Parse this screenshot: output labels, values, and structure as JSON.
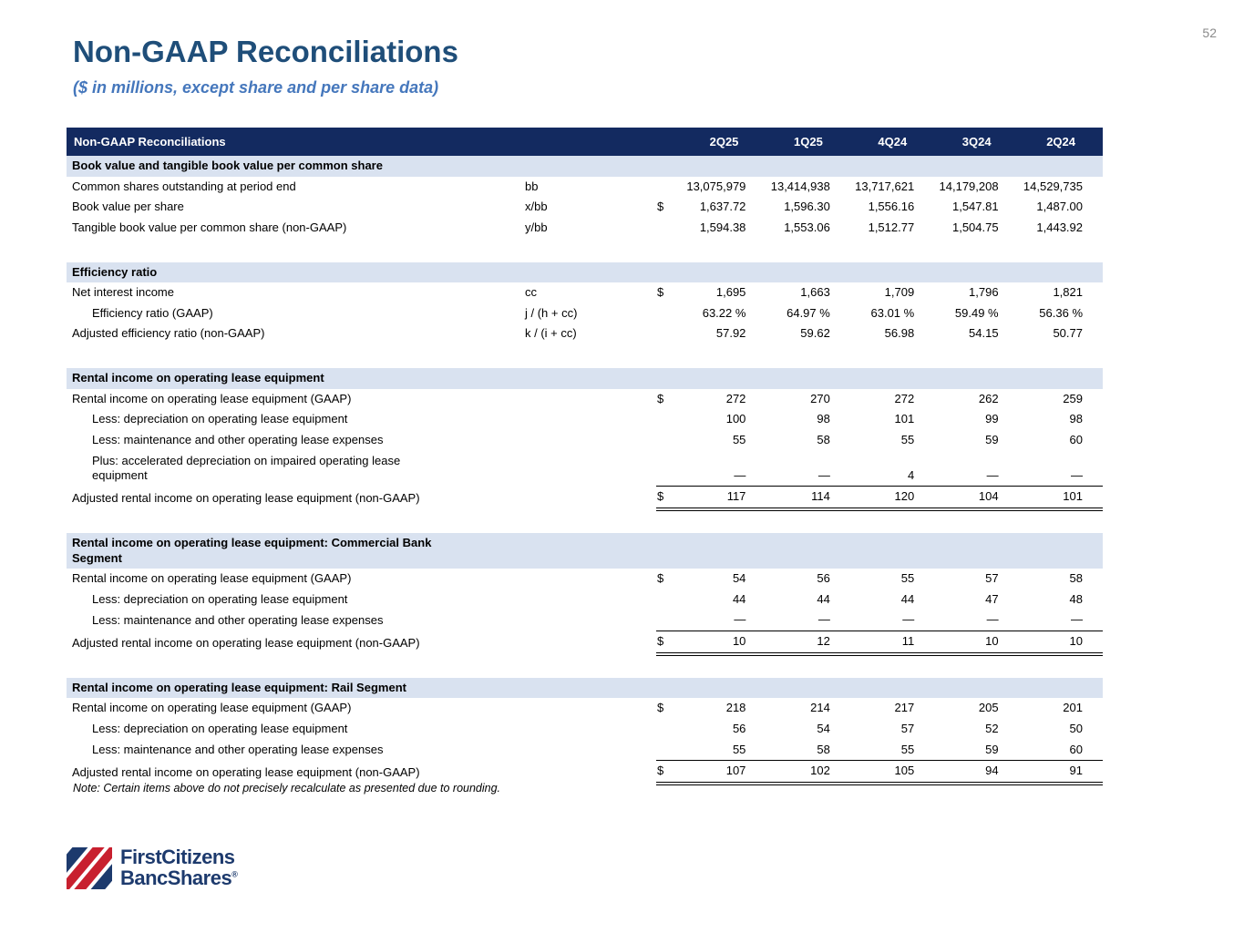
{
  "page": {
    "number": "52",
    "title": "Non-GAAP Reconciliations",
    "subtitle": "($ in millions, except share and per share data)",
    "note": "Note: Certain items above do not precisely recalculate as presented due to rounding."
  },
  "colors": {
    "header_bg": "#132a60",
    "section_bg": "#d9e2f0",
    "title_blue": "#1f4e79",
    "subtitle_blue": "#4577bc",
    "logo_blue": "#1d3a6d",
    "logo_red": "#c8202f"
  },
  "table": {
    "title": "Non-GAAP Reconciliations",
    "period_columns": [
      "2Q25",
      "1Q25",
      "4Q24",
      "3Q24",
      "2Q24"
    ],
    "sections": [
      {
        "title": "Book value and tangible book value per common share",
        "rows": [
          {
            "label": "Common shares outstanding at period end",
            "formula": "bb",
            "dollar": "",
            "indent": false,
            "total": false,
            "values": [
              "13,075,979",
              "13,414,938",
              "13,717,621",
              "14,179,208",
              "14,529,735"
            ]
          },
          {
            "label": "Book value per share",
            "formula": "x/bb",
            "dollar": "$",
            "indent": false,
            "total": false,
            "values": [
              "1,637.72",
              "1,596.30",
              "1,556.16",
              "1,547.81",
              "1,487.00"
            ]
          },
          {
            "label": "Tangible book value per common share (non-GAAP)",
            "formula": "y/bb",
            "dollar": "",
            "indent": false,
            "total": false,
            "values": [
              "1,594.38",
              "1,553.06",
              "1,512.77",
              "1,504.75",
              "1,443.92"
            ]
          }
        ]
      },
      {
        "title": "Efficiency ratio",
        "rows": [
          {
            "label": "Net interest income",
            "formula": "cc",
            "dollar": "$",
            "indent": false,
            "total": false,
            "values": [
              "1,695",
              "1,663",
              "1,709",
              "1,796",
              "1,821"
            ]
          },
          {
            "label": "Efficiency ratio (GAAP)",
            "formula": "j / (h + cc)",
            "dollar": "",
            "indent": true,
            "total": false,
            "values": [
              "63.22 %",
              "64.97 %",
              "63.01 %",
              "59.49 %",
              "56.36 %"
            ]
          },
          {
            "label": "Adjusted efficiency ratio (non-GAAP)",
            "formula": "k / (i + cc)",
            "dollar": "",
            "indent": false,
            "total": false,
            "values": [
              "57.92",
              "59.62",
              "56.98",
              "54.15",
              "50.77"
            ]
          }
        ]
      },
      {
        "title": "Rental income on operating lease equipment",
        "rows": [
          {
            "label": "Rental income on operating lease equipment (GAAP)",
            "formula": "",
            "dollar": "$",
            "indent": false,
            "total": false,
            "values": [
              "272",
              "270",
              "272",
              "262",
              "259"
            ]
          },
          {
            "label": "Less: depreciation on operating lease equipment",
            "formula": "",
            "dollar": "",
            "indent": true,
            "total": false,
            "values": [
              "100",
              "98",
              "101",
              "99",
              "98"
            ]
          },
          {
            "label": "Less: maintenance and other operating lease expenses",
            "formula": "",
            "dollar": "",
            "indent": true,
            "total": false,
            "values": [
              "55",
              "58",
              "55",
              "59",
              "60"
            ]
          },
          {
            "label": "Plus: accelerated depreciation on impaired operating lease\nequipment",
            "formula": "",
            "dollar": "",
            "indent": true,
            "total": false,
            "values": [
              "—",
              "—",
              "4",
              "—",
              "—"
            ]
          },
          {
            "label": "Adjusted rental income on operating lease equipment (non-GAAP)",
            "formula": "",
            "dollar": "$",
            "indent": false,
            "total": true,
            "values": [
              "117",
              "114",
              "120",
              "104",
              "101"
            ]
          }
        ]
      },
      {
        "title": "Rental income on operating lease equipment: Commercial Bank\nSegment",
        "rows": [
          {
            "label": "Rental income on operating lease equipment (GAAP)",
            "formula": "",
            "dollar": "$",
            "indent": false,
            "total": false,
            "values": [
              "54",
              "56",
              "55",
              "57",
              "58"
            ]
          },
          {
            "label": "Less: depreciation on operating lease equipment",
            "formula": "",
            "dollar": "",
            "indent": true,
            "total": false,
            "values": [
              "44",
              "44",
              "44",
              "47",
              "48"
            ]
          },
          {
            "label": "Less: maintenance and other operating lease expenses",
            "formula": "",
            "dollar": "",
            "indent": true,
            "total": false,
            "values": [
              "—",
              "—",
              "—",
              "—",
              "—"
            ]
          },
          {
            "label": "Adjusted rental income on operating lease equipment (non-GAAP)",
            "formula": "",
            "dollar": "$",
            "indent": false,
            "total": true,
            "values": [
              "10",
              "12",
              "11",
              "10",
              "10"
            ]
          }
        ]
      },
      {
        "title": "Rental income on operating lease equipment: Rail Segment",
        "rows": [
          {
            "label": "Rental income on operating lease equipment (GAAP)",
            "formula": "",
            "dollar": "$",
            "indent": false,
            "total": false,
            "values": [
              "218",
              "214",
              "217",
              "205",
              "201"
            ]
          },
          {
            "label": "Less: depreciation on operating lease equipment",
            "formula": "",
            "dollar": "",
            "indent": true,
            "total": false,
            "values": [
              "56",
              "54",
              "57",
              "52",
              "50"
            ]
          },
          {
            "label": "Less: maintenance and other operating lease expenses",
            "formula": "",
            "dollar": "",
            "indent": true,
            "total": false,
            "values": [
              "55",
              "58",
              "55",
              "59",
              "60"
            ]
          },
          {
            "label": "Adjusted rental income on operating lease equipment (non-GAAP)",
            "formula": "",
            "dollar": "$",
            "indent": false,
            "total": true,
            "values": [
              "107",
              "102",
              "105",
              "94",
              "91"
            ]
          }
        ]
      }
    ]
  },
  "logo": {
    "name1": "FirstCitizens",
    "name2": "BancShares",
    "reg": "®"
  }
}
